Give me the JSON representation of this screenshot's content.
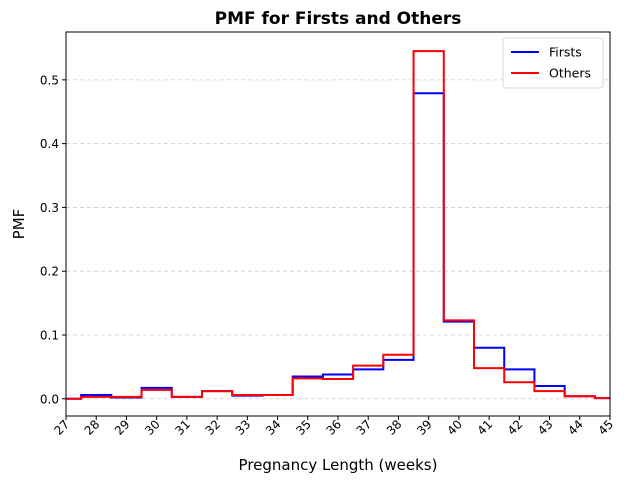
{
  "chart_data": {
    "type": "line",
    "style": "step",
    "title": "PMF for Firsts and Others",
    "xlabel": "Pregnancy Length (weeks)",
    "ylabel": "PMF",
    "xlim": [
      27,
      45
    ],
    "ylim": [
      -0.027,
      0.575
    ],
    "xticks": [
      27,
      28,
      29,
      30,
      31,
      32,
      33,
      34,
      35,
      36,
      37,
      38,
      39,
      40,
      41,
      42,
      43,
      44,
      45
    ],
    "yticks": [
      0.0,
      0.1,
      0.2,
      0.3,
      0.4,
      0.5
    ],
    "ytick_labels": [
      "0.0",
      "0.1",
      "0.2",
      "0.3",
      "0.4",
      "0.5"
    ],
    "grid": "y-dashed",
    "legend_position": "top-right",
    "x": [
      27,
      28,
      29,
      30,
      31,
      32,
      33,
      34,
      35,
      36,
      37,
      38,
      39,
      40,
      41,
      42,
      43,
      44,
      45
    ],
    "series": [
      {
        "name": "Firsts",
        "color": "#0000ff",
        "values": [
          0.0,
          0.006,
          0.002,
          0.017,
          0.003,
          0.012,
          0.005,
          0.006,
          0.035,
          0.038,
          0.046,
          0.061,
          0.479,
          0.121,
          0.08,
          0.046,
          0.02,
          0.004,
          0.001
        ]
      },
      {
        "name": "Others",
        "color": "#ff0000",
        "values": [
          0.0,
          0.003,
          0.003,
          0.014,
          0.003,
          0.012,
          0.006,
          0.006,
          0.032,
          0.031,
          0.052,
          0.069,
          0.545,
          0.123,
          0.048,
          0.026,
          0.012,
          0.004,
          0.001
        ]
      }
    ]
  }
}
